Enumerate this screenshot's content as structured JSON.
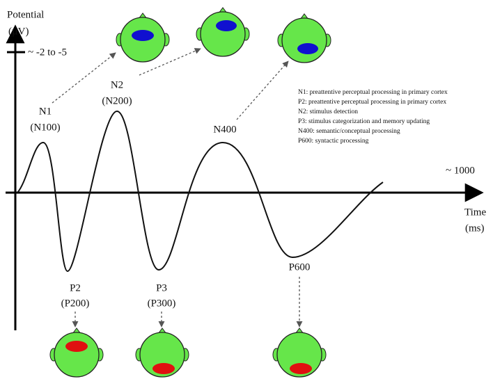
{
  "axes": {
    "y_label": [
      "Potential",
      "(µV)"
    ],
    "y_range": "~ -2 to -5",
    "x_label": [
      "Time",
      "(ms)"
    ],
    "x_range": "~ 1000"
  },
  "components": [
    {
      "label": "N1",
      "alt": "(N100)"
    },
    {
      "label": "N2",
      "alt": "(N200)"
    },
    {
      "label": "N400"
    },
    {
      "label": "P2",
      "alt": "(P200)"
    },
    {
      "label": "P3",
      "alt": "(P300)"
    },
    {
      "label": "P600"
    }
  ],
  "legend": [
    "N1: preattentive perceptual processing in primary cortex",
    "P2: preattentive perceptual processing in primary cortex",
    "N2: stimulus detection",
    "P3: stimulus categorization and memory updating",
    "N400: semantic/conceptual processing",
    "P600: syntactic processing"
  ]
}
